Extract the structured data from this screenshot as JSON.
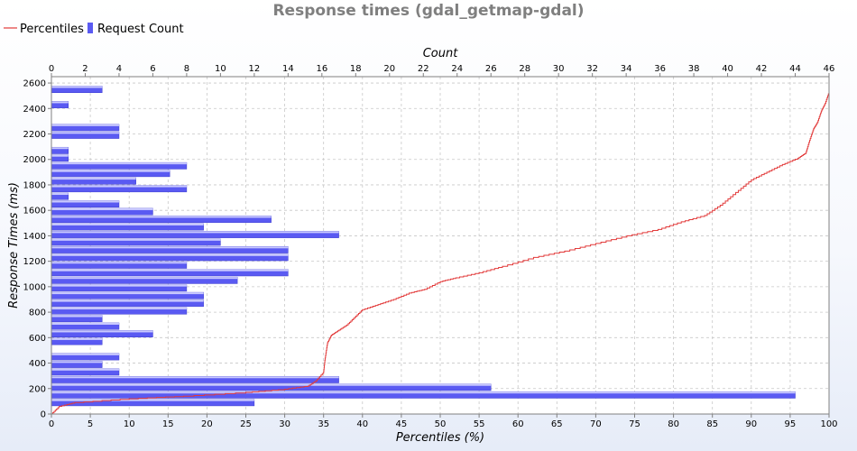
{
  "chart_data": {
    "type": "bar",
    "title": "Response times (gdal_getmap-gdal)",
    "legend": {
      "placement": "top-left",
      "items": [
        {
          "label": "Percentiles",
          "color": "#e23a3a",
          "kind": "line"
        },
        {
          "label": "Request Count",
          "color": "#5a5af2",
          "kind": "bar"
        }
      ]
    },
    "x_top_label": "Count",
    "x_bottom_label": "Percentiles (%)",
    "ylabel": "Response Times (ms)",
    "x_top_range": [
      0,
      46
    ],
    "x_top_ticks": [
      0,
      2,
      4,
      6,
      8,
      10,
      12,
      14,
      16,
      18,
      20,
      22,
      24,
      26,
      28,
      30,
      32,
      34,
      36,
      38,
      40,
      42,
      44,
      46
    ],
    "x_bottom_range": [
      0,
      100
    ],
    "x_bottom_ticks": [
      0,
      5,
      10,
      15,
      20,
      25,
      30,
      35,
      40,
      45,
      50,
      55,
      60,
      65,
      70,
      75,
      80,
      85,
      90,
      95,
      100
    ],
    "y_range": [
      0,
      2650
    ],
    "y_ticks": [
      0,
      200,
      400,
      600,
      800,
      1000,
      1200,
      1400,
      1600,
      1800,
      2000,
      2200,
      2400,
      2600
    ],
    "grid": true,
    "series": [
      {
        "name": "Request Count",
        "orientation": "horizontal",
        "bin_width_ms": 60,
        "bins_ms": [
          60,
          120,
          180,
          240,
          300,
          360,
          420,
          540,
          600,
          660,
          720,
          780,
          840,
          900,
          960,
          1020,
          1080,
          1140,
          1200,
          1260,
          1320,
          1380,
          1440,
          1500,
          1560,
          1620,
          1680,
          1740,
          1800,
          1860,
          1920,
          1980,
          2040,
          2160,
          2220,
          2400,
          2520
        ],
        "counts": [
          12,
          44,
          26,
          17,
          4,
          3,
          4,
          3,
          6,
          4,
          3,
          8,
          9,
          9,
          8,
          11,
          14,
          8,
          14,
          14,
          10,
          17,
          9,
          13,
          6,
          4,
          1,
          8,
          5,
          7,
          8,
          1,
          1,
          4,
          4,
          1,
          3
        ]
      },
      {
        "name": "Percentiles",
        "points": [
          [
            0,
            0
          ],
          [
            1,
            60
          ],
          [
            3,
            90
          ],
          [
            10,
            120
          ],
          [
            17,
            140
          ],
          [
            25,
            170
          ],
          [
            30,
            195
          ],
          [
            33,
            220
          ],
          [
            34,
            260
          ],
          [
            35,
            330
          ],
          [
            35.2,
            440
          ],
          [
            35.5,
            560
          ],
          [
            36,
            620
          ],
          [
            37,
            660
          ],
          [
            38,
            700
          ],
          [
            39,
            760
          ],
          [
            40,
            820
          ],
          [
            42,
            860
          ],
          [
            44,
            900
          ],
          [
            46,
            950
          ],
          [
            48,
            980
          ],
          [
            50,
            1040
          ],
          [
            52,
            1070
          ],
          [
            55,
            1110
          ],
          [
            58,
            1160
          ],
          [
            62,
            1230
          ],
          [
            66,
            1280
          ],
          [
            70,
            1340
          ],
          [
            74,
            1400
          ],
          [
            78,
            1450
          ],
          [
            81,
            1510
          ],
          [
            84,
            1560
          ],
          [
            86,
            1640
          ],
          [
            88,
            1740
          ],
          [
            90,
            1840
          ],
          [
            92,
            1900
          ],
          [
            94,
            1960
          ],
          [
            96,
            2010
          ],
          [
            97,
            2050
          ],
          [
            97.5,
            2150
          ],
          [
            98,
            2240
          ],
          [
            98.5,
            2290
          ],
          [
            99,
            2380
          ],
          [
            99.5,
            2440
          ],
          [
            100,
            2530
          ]
        ]
      }
    ]
  }
}
